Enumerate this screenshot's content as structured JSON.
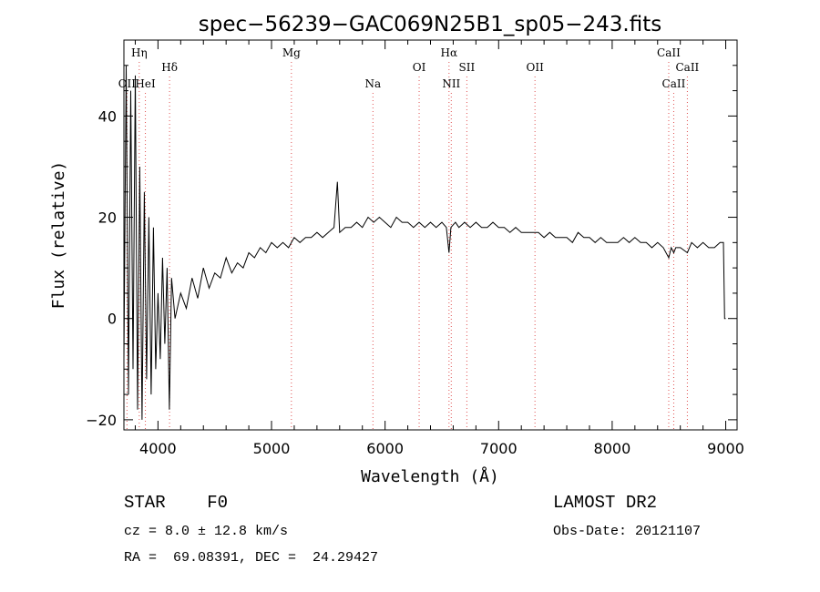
{
  "chart_data": {
    "type": "line",
    "title": "spec−56239−GAC069N25B1_sp05−243.fits",
    "xlabel": "Wavelength (Å)",
    "ylabel": "Flux (relative)",
    "xlim": [
      3700,
      9100
    ],
    "ylim": [
      -22,
      55
    ],
    "x_ticks": [
      4000,
      5000,
      6000,
      7000,
      8000,
      9000
    ],
    "y_ticks": [
      -20,
      0,
      20,
      40
    ],
    "grid": false,
    "series": [
      {
        "x": [
          3700,
          3720,
          3740,
          3760,
          3780,
          3800,
          3820,
          3840,
          3860,
          3880,
          3900,
          3920,
          3940,
          3960,
          3980,
          4000,
          4020,
          4040,
          4060,
          4080,
          4100,
          4120,
          4150,
          4200,
          4250,
          4300,
          4350,
          4400,
          4450,
          4500,
          4550,
          4600,
          4650,
          4700,
          4750,
          4800,
          4850,
          4900,
          4950,
          5000,
          5050,
          5100,
          5150,
          5200,
          5250,
          5300,
          5350,
          5400,
          5450,
          5500,
          5550,
          5580,
          5600,
          5650,
          5700,
          5750,
          5800,
          5850,
          5900,
          5950,
          6000,
          6050,
          6100,
          6150,
          6200,
          6250,
          6300,
          6350,
          6400,
          6450,
          6500,
          6540,
          6563,
          6580,
          6620,
          6650,
          6700,
          6750,
          6800,
          6850,
          6900,
          6950,
          7000,
          7050,
          7100,
          7150,
          7200,
          7250,
          7300,
          7350,
          7400,
          7450,
          7500,
          7550,
          7600,
          7650,
          7700,
          7750,
          7800,
          7850,
          7900,
          7950,
          8000,
          8050,
          8100,
          8150,
          8200,
          8250,
          8300,
          8350,
          8400,
          8450,
          8498,
          8520,
          8542,
          8560,
          8600,
          8662,
          8700,
          8750,
          8800,
          8850,
          8900,
          8950,
          8980,
          8990,
          9000
        ],
        "y": [
          -8,
          50,
          -15,
          45,
          -10,
          48,
          -18,
          30,
          -20,
          25,
          -12,
          20,
          -15,
          18,
          -10,
          5,
          -8,
          12,
          -5,
          10,
          -18,
          8,
          0,
          5,
          2,
          8,
          4,
          10,
          6,
          9,
          8,
          12,
          9,
          11,
          10,
          13,
          12,
          14,
          13,
          15,
          14,
          15,
          14,
          16,
          15,
          16,
          16,
          17,
          16,
          17,
          18,
          27,
          17,
          18,
          18,
          19,
          18,
          20,
          19,
          20,
          19,
          18,
          20,
          19,
          19,
          18,
          19,
          18,
          19,
          18,
          19,
          18,
          13,
          18,
          19,
          18,
          19,
          18,
          19,
          18,
          18,
          19,
          18,
          18,
          17,
          18,
          17,
          17,
          17,
          17,
          16,
          17,
          16,
          16,
          16,
          15,
          17,
          16,
          16,
          15,
          16,
          15,
          15,
          15,
          16,
          15,
          16,
          15,
          15,
          14,
          15,
          14,
          12,
          14,
          13,
          14,
          14,
          13,
          15,
          14,
          15,
          14,
          14,
          15,
          15,
          0,
          0
        ],
        "style": "solid"
      }
    ],
    "line_markers": [
      {
        "label": "OII",
        "x": 3727,
        "row": 3
      },
      {
        "label": "Hη",
        "x": 3835,
        "row": 1
      },
      {
        "label": "HeI",
        "x": 3889,
        "row": 3
      },
      {
        "label": "Hδ",
        "x": 4102,
        "row": 2
      },
      {
        "label": "Mg",
        "x": 5175,
        "row": 1
      },
      {
        "label": "Na",
        "x": 5893,
        "row": 3
      },
      {
        "label": "OI",
        "x": 6300,
        "row": 2
      },
      {
        "label": "Hα",
        "x": 6563,
        "row": 1
      },
      {
        "label": "NII",
        "x": 6583,
        "row": 3
      },
      {
        "label": "SII",
        "x": 6720,
        "row": 2
      },
      {
        "label": "OII",
        "x": 7320,
        "row": 2
      },
      {
        "label": "CaII",
        "x": 8498,
        "row": 1
      },
      {
        "label": "CaII",
        "x": 8542,
        "row": 3
      },
      {
        "label": "CaII",
        "x": 8662,
        "row": 2
      }
    ]
  },
  "info": {
    "object_class": "STAR    F0",
    "survey": "LAMOST DR2",
    "redshift": "cz = 8.0 ± 12.8 km/s",
    "obs_date": "Obs-Date: 20121107",
    "coords": "RA =  69.08391, DEC =  24.29427"
  },
  "colors": {
    "spectrum": "#000000",
    "marker_line": "#e05050"
  }
}
